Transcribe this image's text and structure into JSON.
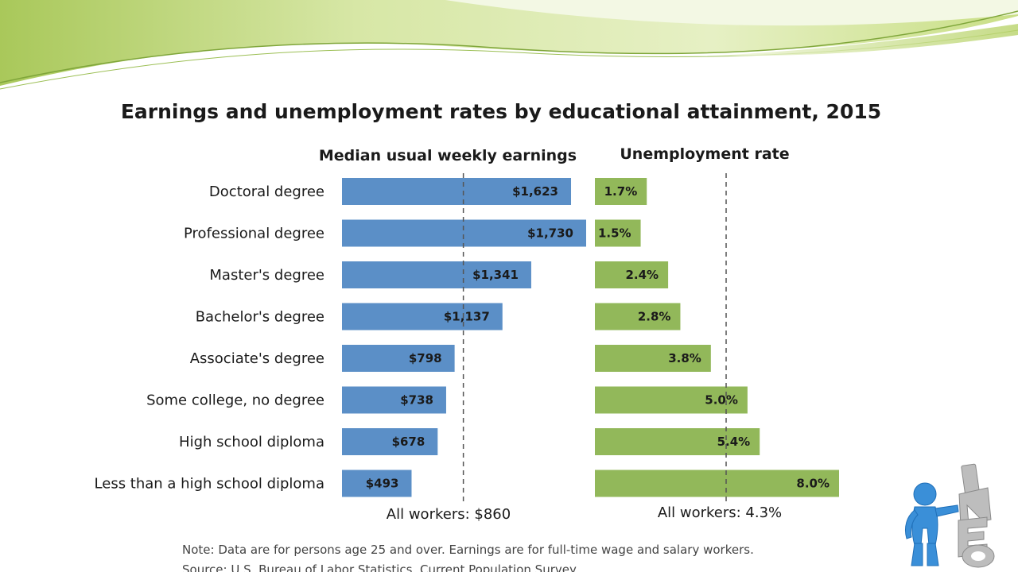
{
  "chart_data": {
    "type": "bar",
    "title": "Earnings and unemployment rates by educational attainment, 2015",
    "categories": [
      "Doctoral degree",
      "Professional degree",
      "Master's degree",
      "Bachelor's degree",
      "Associate's degree",
      "Some college, no degree",
      "High school diploma",
      "Less than a high school diploma"
    ],
    "series": [
      {
        "name": "Median usual weekly earnings",
        "values": [
          1623,
          1730,
          1341,
          1137,
          798,
          738,
          678,
          493
        ],
        "labels": [
          "$1,623",
          "$1,730",
          "$1,341",
          "$1,137",
          "$798",
          "$738",
          "$678",
          "$493"
        ],
        "color": "#5b8fc7",
        "reference_value": 860,
        "reference_label": "All workers: $860"
      },
      {
        "name": "Unemployment rate",
        "values": [
          1.7,
          1.5,
          2.4,
          2.8,
          3.8,
          5.0,
          5.4,
          8.0
        ],
        "labels": [
          "1.7%",
          "1.5%",
          "2.4%",
          "2.8%",
          "3.8%",
          "5.0%",
          "5.4%",
          "8.0%"
        ],
        "color": "#92b85a",
        "reference_value": 4.3,
        "reference_label": "All workers: 4.3%"
      }
    ],
    "orientation": "horizontal",
    "grid": false,
    "notes": [
      "Note: Data are for persons age 25 and over. Earnings are for full-time wage and salary workers.",
      "Source: U.S. Bureau of Labor Statistics, Current Population Survey."
    ]
  },
  "colors": {
    "earnings_bar": "#5b8fc7",
    "unemployment_bar": "#92b85a",
    "header_swoosh": "#c8dc8c",
    "figure_blue": "#3a8fd8",
    "figure_letters": "#b9b9b9"
  },
  "decorations": {
    "header": "green-swoosh-banner",
    "figure_icon": "blue-person-leaning-on-letters-icon"
  }
}
